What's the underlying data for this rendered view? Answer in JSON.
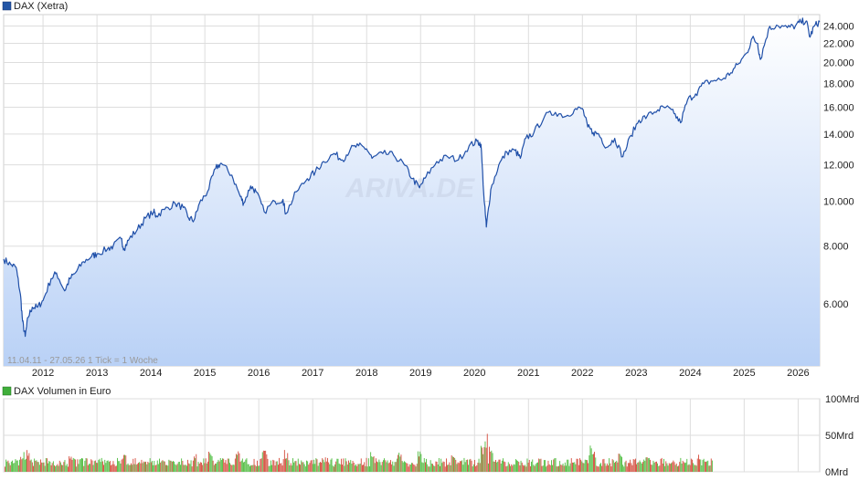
{
  "colors": {
    "price_line": "#1f4fa8",
    "legend_price": "#2355a6",
    "area_top": "#ffffff",
    "area_bottom": "#b9d1f6",
    "volume_up": "#4cbb3c",
    "volume_down": "#d44a3a",
    "legend_volume": "#3fae3a",
    "grid": "#dddddd"
  },
  "watermark": "ARIVA.DE",
  "chart_data": [
    {
      "type": "line",
      "title": "DAX (Xetra)",
      "y_scale": "log",
      "ylim": [
        4400,
        25400
      ],
      "xlim": [
        2011.27,
        2026.4
      ],
      "y_ticks": [
        6000,
        8000,
        10000,
        12000,
        14000,
        16000,
        18000,
        20000,
        22000,
        24000
      ],
      "y_tick_labels": [
        "6.000",
        "8.000",
        "10.000",
        "12.000",
        "14.000",
        "16.000",
        "18.000",
        "20.000",
        "22.000",
        "24.000"
      ],
      "x_ticks": [
        2012,
        2013,
        2014,
        2015,
        2016,
        2017,
        2018,
        2019,
        2020,
        2021,
        2022,
        2023,
        2024,
        2025,
        2026
      ],
      "x_tick_labels": [
        "2012",
        "2013",
        "2014",
        "2015",
        "2016",
        "2017",
        "2018",
        "2019",
        "2020",
        "2021",
        "2022",
        "2023",
        "2024",
        "2025",
        "2026"
      ],
      "grid": true,
      "legend": "top-left",
      "info_text": "11.04.11 - 27.05.26   1 Tick = 1 Woche",
      "series": [
        {
          "name": "DAX (Xetra)",
          "x": [
            2011.27,
            2011.4,
            2011.5,
            2011.58,
            2011.62,
            2011.67,
            2011.72,
            2011.8,
            2011.9,
            2012.0,
            2012.15,
            2012.25,
            2012.4,
            2012.5,
            2012.6,
            2012.75,
            2012.9,
            2013.0,
            2013.2,
            2013.3,
            2013.45,
            2013.5,
            2013.6,
            2013.75,
            2013.9,
            2014.05,
            2014.1,
            2014.25,
            2014.45,
            2014.6,
            2014.7,
            2014.8,
            2014.9,
            2015.05,
            2015.2,
            2015.3,
            2015.5,
            2015.65,
            2015.72,
            2015.85,
            2015.95,
            2016.1,
            2016.3,
            2016.45,
            2016.5,
            2016.7,
            2016.9,
            2017.05,
            2017.2,
            2017.4,
            2017.55,
            2017.7,
            2017.85,
            2018.0,
            2018.1,
            2018.3,
            2018.5,
            2018.7,
            2018.85,
            2018.98,
            2019.1,
            2019.3,
            2019.5,
            2019.7,
            2019.9,
            2020.05,
            2020.12,
            2020.18,
            2020.22,
            2020.3,
            2020.45,
            2020.6,
            2020.75,
            2020.85,
            2020.95,
            2021.1,
            2021.3,
            2021.5,
            2021.7,
            2021.85,
            2022.0,
            2022.1,
            2022.2,
            2022.3,
            2022.45,
            2022.6,
            2022.75,
            2022.9,
            2023.05,
            2023.2,
            2023.4,
            2023.55,
            2023.7,
            2023.82,
            2023.95,
            2024.1,
            2024.25,
            2024.45,
            2024.6,
            2024.75,
            2024.9,
            2025.05,
            2025.15,
            2025.25,
            2025.3,
            2025.45,
            2025.6,
            2025.8,
            2025.95,
            2026.05,
            2026.15,
            2026.22,
            2026.3,
            2026.4
          ],
          "y": [
            7500,
            7300,
            7200,
            6300,
            5500,
            5100,
            5600,
            5900,
            5900,
            6100,
            6800,
            7000,
            6400,
            6800,
            7000,
            7400,
            7600,
            7700,
            7900,
            8000,
            8300,
            7900,
            8300,
            8700,
            9200,
            9500,
            9300,
            9600,
            9900,
            9700,
            9200,
            9100,
            9900,
            10500,
            11800,
            12100,
            11400,
            10300,
            9900,
            10800,
            10500,
            9500,
            10000,
            10100,
            9400,
            10500,
            11200,
            11600,
            12200,
            12700,
            12300,
            13000,
            13200,
            13000,
            12400,
            12700,
            12600,
            12000,
            11200,
            10700,
            11300,
            12200,
            12500,
            12300,
            13200,
            13500,
            13300,
            10000,
            8800,
            10600,
            12000,
            12800,
            12900,
            12400,
            13700,
            14100,
            15300,
            15600,
            15300,
            15800,
            15900,
            14500,
            14100,
            14000,
            13100,
            13700,
            12500,
            13900,
            15000,
            15300,
            15800,
            16000,
            15500,
            14800,
            16600,
            17100,
            18000,
            18300,
            18400,
            19000,
            19900,
            21000,
            22600,
            22000,
            20300,
            23600,
            24100,
            23800,
            24000,
            24500,
            24600,
            22700,
            24000,
            24500
          ]
        }
      ]
    },
    {
      "type": "bar",
      "title": "DAX Volumen in Euro",
      "ylim": [
        0,
        100
      ],
      "y_ticks": [
        0,
        50,
        100
      ],
      "y_tick_labels": [
        "0Mrd",
        "50Mrd",
        "100Mrd"
      ],
      "legend": "top-left",
      "x_range": [
        2011.27,
        2024.4
      ],
      "series": [
        {
          "name": "DAX Volumen in Euro",
          "x": [
            2011.6,
            2011.7,
            2012.5,
            2013.5,
            2014.8,
            2015.1,
            2015.6,
            2016.1,
            2016.5,
            2017.2,
            2018.1,
            2018.6,
            2018.98,
            2019.6,
            2020.15,
            2020.2,
            2020.3,
            2021.2,
            2022.15,
            2022.2,
            2022.7,
            2023.2,
            2024.15
          ],
          "y": [
            28,
            31,
            22,
            24,
            26,
            32,
            30,
            30,
            30,
            24,
            35,
            27,
            30,
            24,
            38,
            52,
            36,
            22,
            40,
            32,
            26,
            24,
            26
          ]
        }
      ]
    }
  ]
}
